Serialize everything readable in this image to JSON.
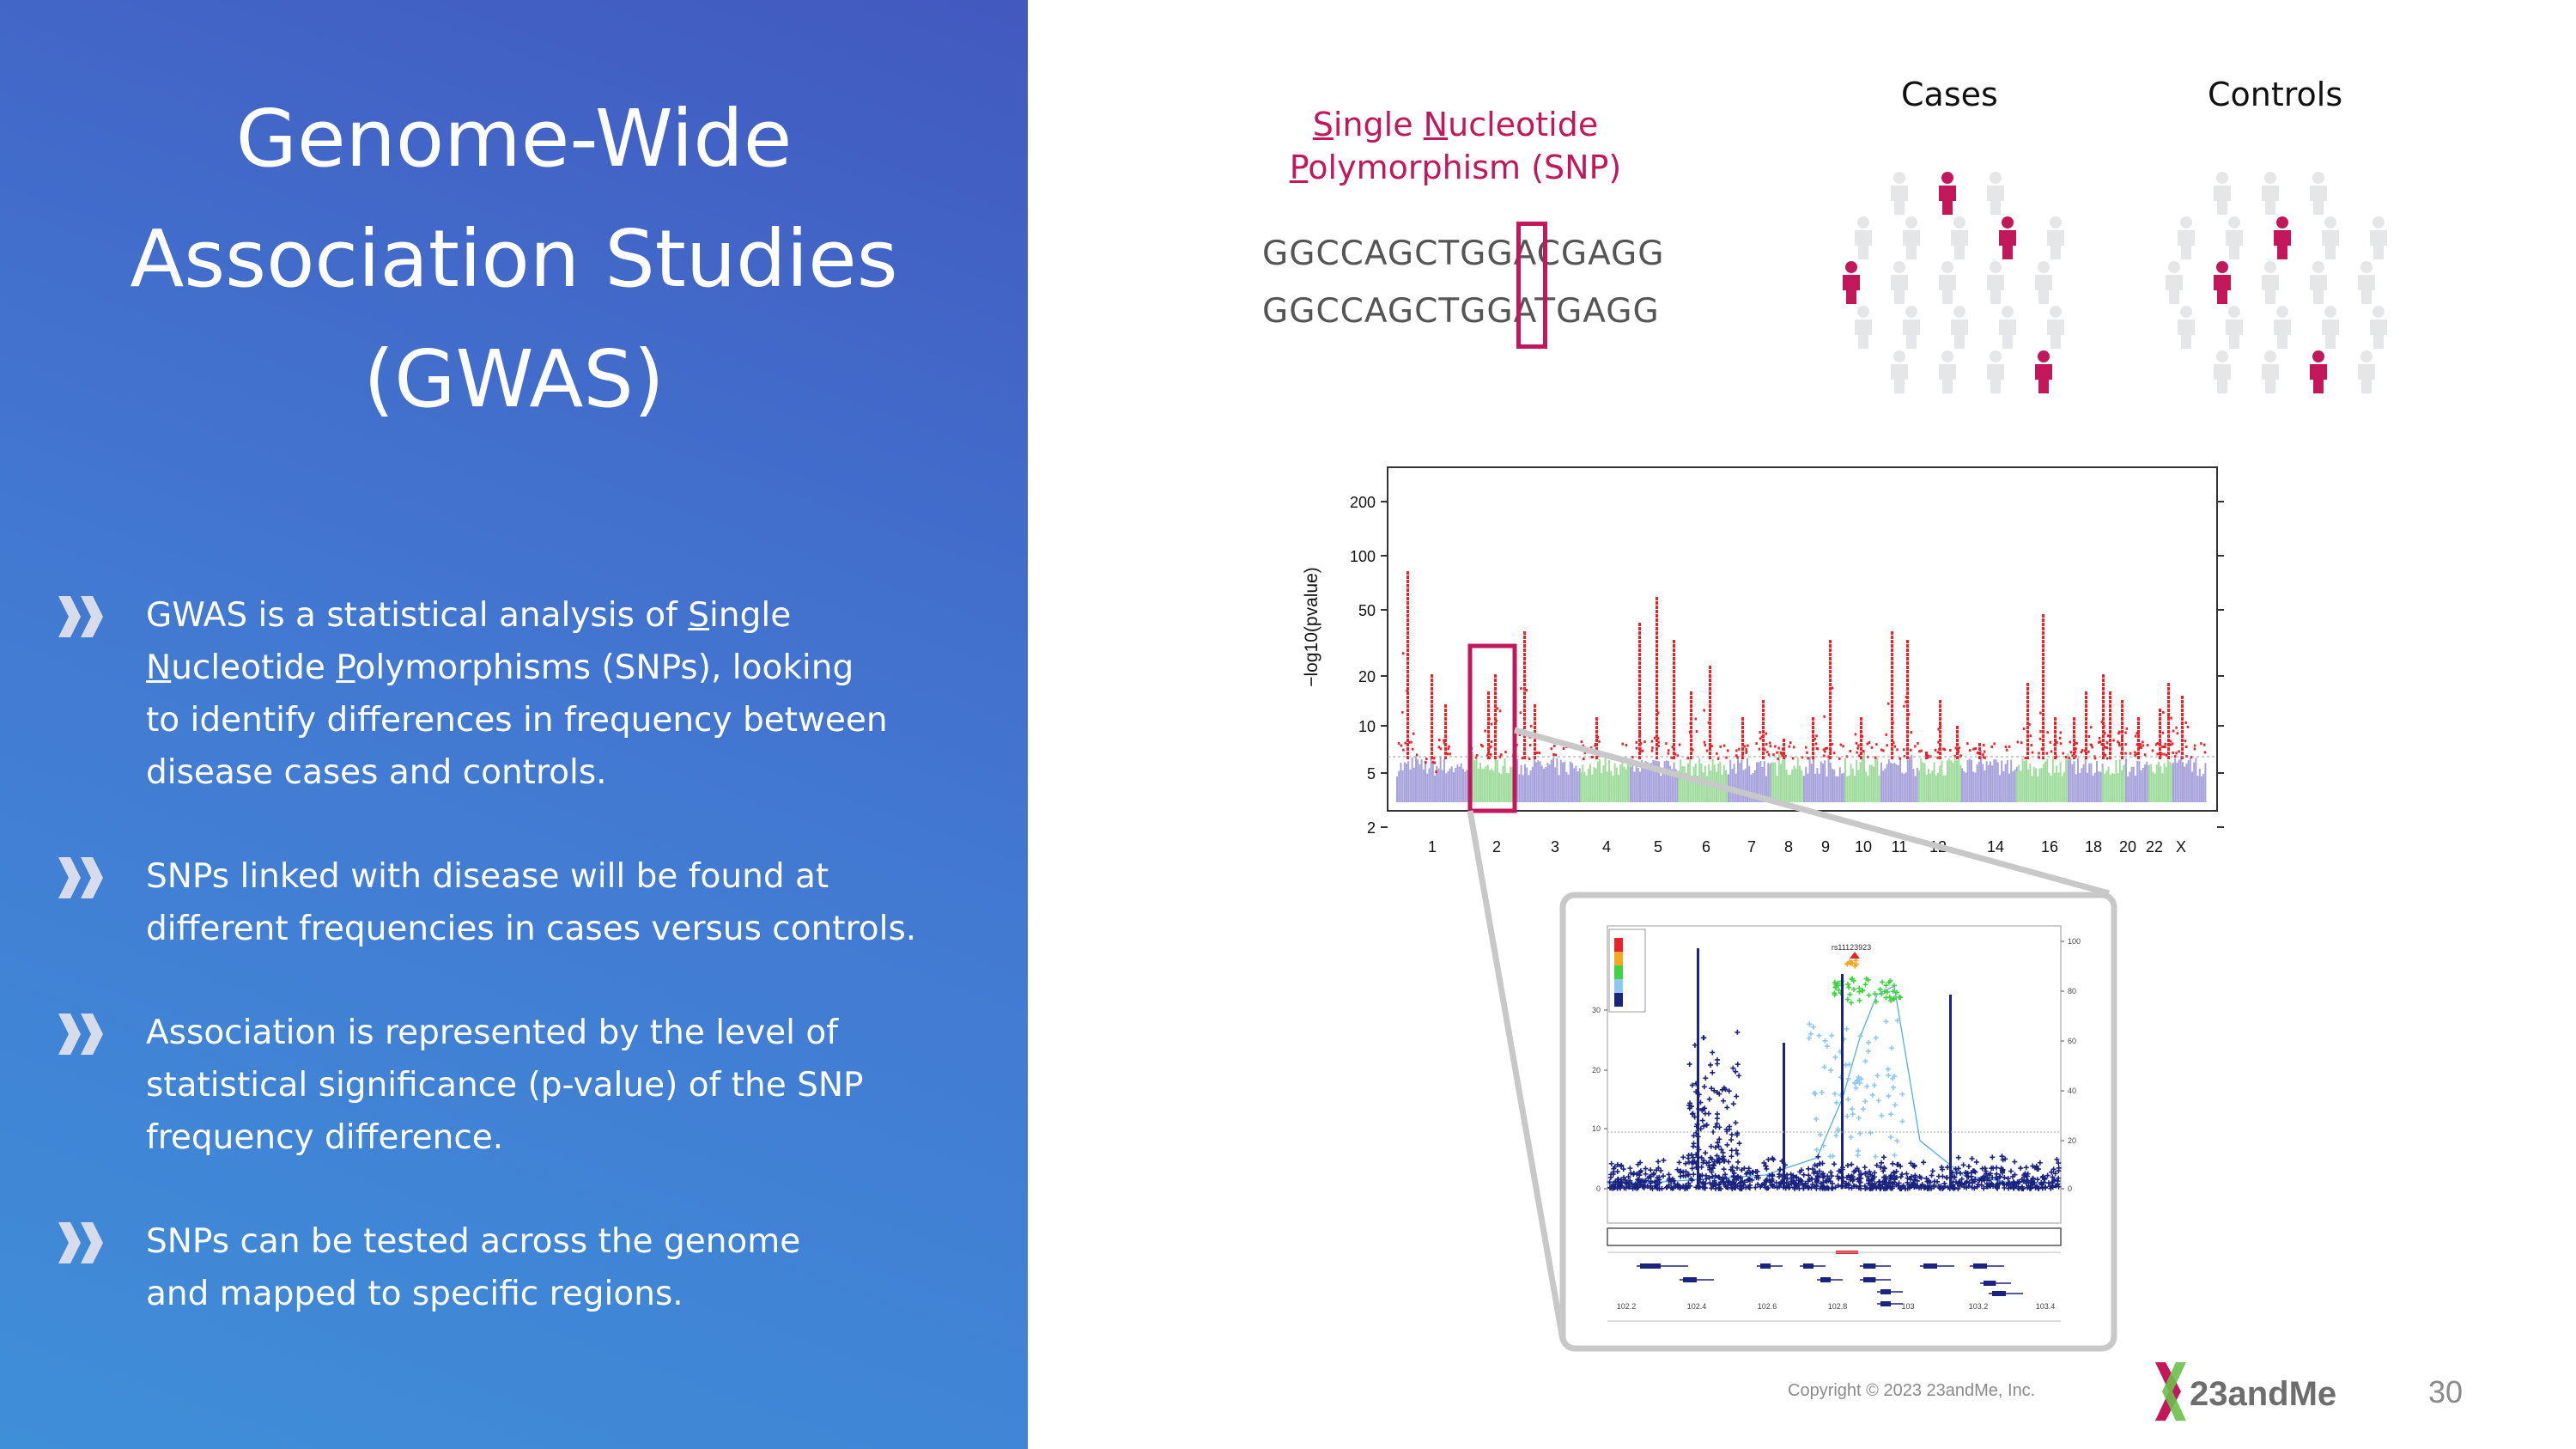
{
  "slide": {
    "title_lines": [
      "Genome-Wide",
      "Association Studies",
      "(GWAS)"
    ],
    "bullets": [
      {
        "lines_html": [
          "GWAS is a statistical analysis of <u>S</u>ingle",
          "<u>N</u>ucleotide <u>P</u>olymorphisms (SNPs), looking",
          "to identify differences in frequency between",
          "disease cases and controls."
        ]
      },
      {
        "lines_html": [
          "SNPs linked with disease will be found at",
          "different frequencies in cases versus controls."
        ]
      },
      {
        "lines_html": [
          "Association is represented by the level of",
          "statistical significance (p-value) of the SNP",
          "frequency difference."
        ]
      },
      {
        "lines_html": [
          "SNPs can be tested across the genome",
          "and mapped to specific regions."
        ]
      }
    ],
    "snp_title_html": "<u>S</u>ingle <u>N</u>ucleotide<br><u>P</u>olymorphism (SNP)",
    "sequence_1": "GGCCAGCTGGACGAGG",
    "sequence_2": "GGCCAGCTGGATGAGG",
    "cases_label": "Cases",
    "controls_label": "Controls",
    "copyright": "Copyright © 2023 23andMe, Inc.",
    "logo_text": "23andMe",
    "page_number": "30"
  },
  "colors": {
    "accent": "#c2185b",
    "significant": "#e8232a",
    "chrom_a": "#a7a2dc",
    "chrom_b": "#9fdc9c",
    "regional_dark": "#1a2380"
  },
  "chart_data": [
    {
      "type": "scatter",
      "name": "manhattan",
      "ylabel": "−log10(pvalue)",
      "y_ticks": [
        "2",
        "5",
        "10",
        "20",
        "50",
        "100",
        "200"
      ],
      "x_tick_labels": [
        "1",
        "2",
        "3",
        "4",
        "5",
        "6",
        "7",
        "8",
        "9",
        "10",
        "11",
        "12",
        "14",
        "16",
        "18",
        "20",
        "22",
        "X"
      ]
    },
    {
      "type": "scatter",
      "name": "regional",
      "snp_label": "rs11123923",
      "y_left_ticks": [
        "0",
        "10",
        "20",
        "30"
      ],
      "y_right_ticks": [
        "0",
        "20",
        "40",
        "60",
        "80",
        "100"
      ],
      "x_ticks": [
        "102.2",
        "102.4",
        "102.6",
        "102.8",
        "103",
        "103.2",
        "103.4"
      ]
    }
  ]
}
